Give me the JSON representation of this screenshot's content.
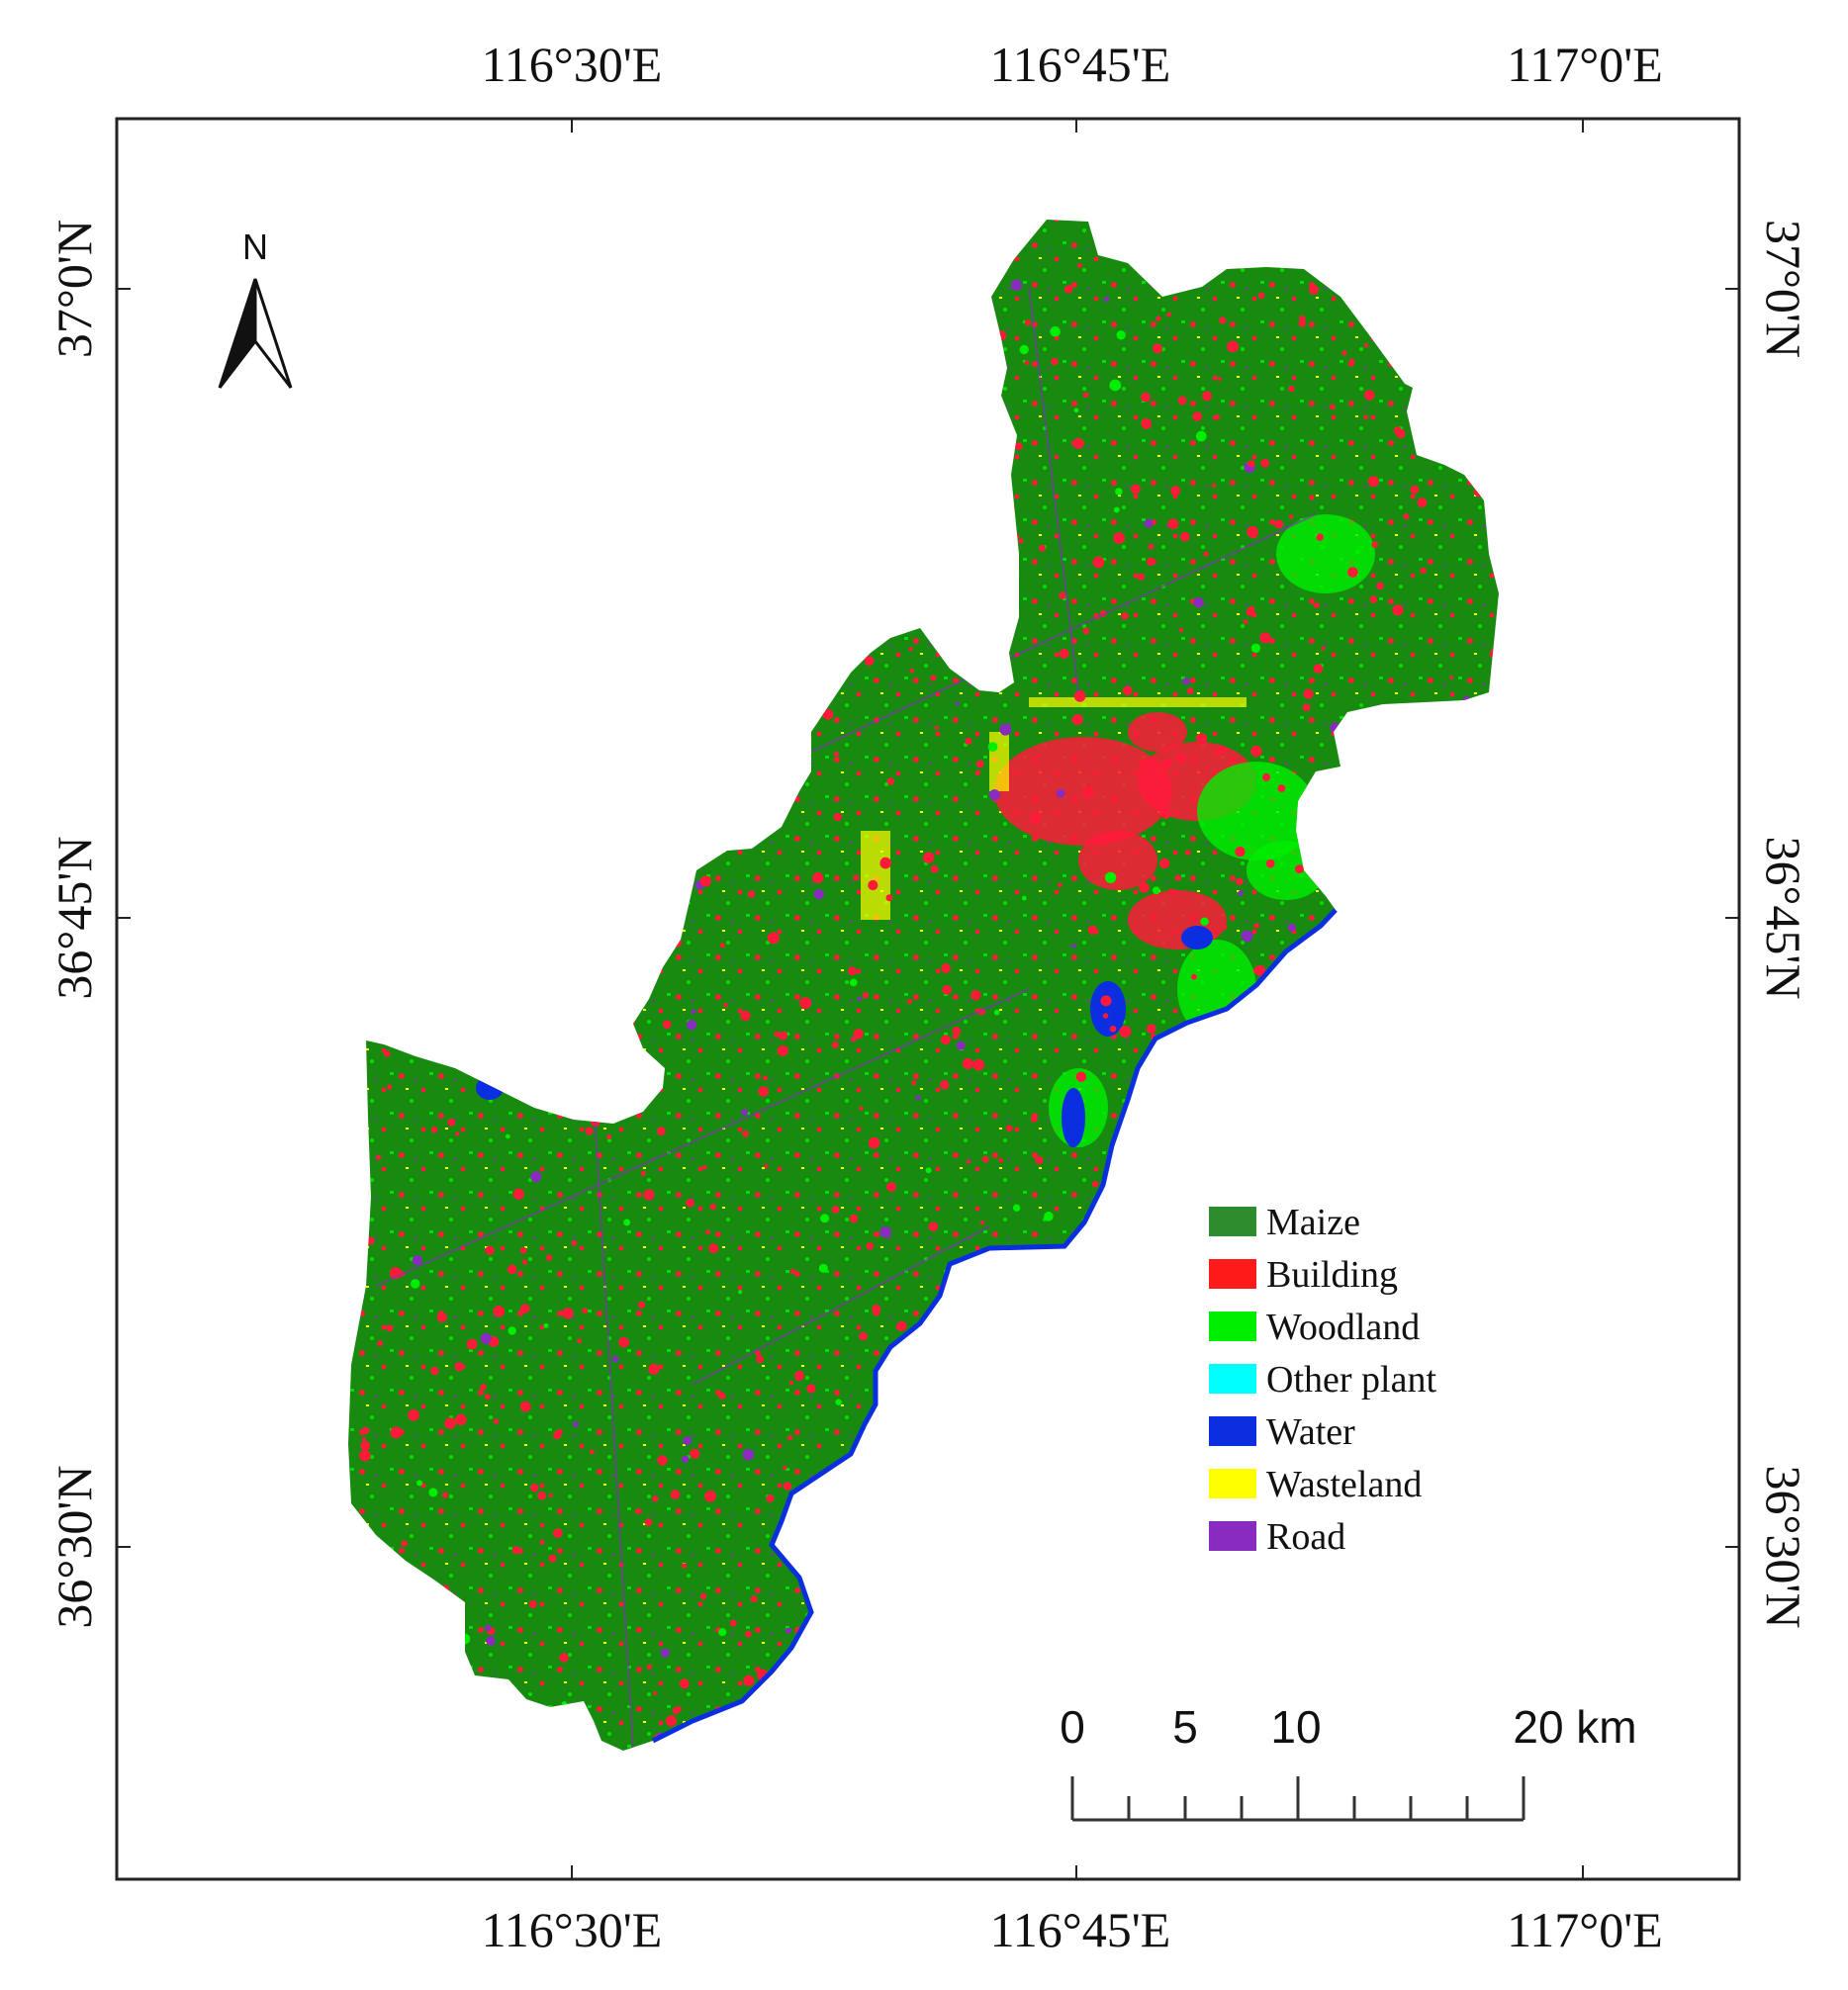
{
  "longitude_labels": [
    {
      "text": "116°30'E",
      "value": "116°30'E"
    },
    {
      "text": "116°45'E",
      "value": "116°45'E"
    },
    {
      "text": "117°0'E",
      "value": "117°0'E"
    }
  ],
  "latitude_labels": [
    {
      "text": "37°0'N"
    },
    {
      "text": "36°45'N"
    },
    {
      "text": "36°30'N"
    }
  ],
  "north_arrow": {
    "label": "N",
    "icon": "north-arrow-icon"
  },
  "legend": {
    "items": [
      {
        "label": "Maize",
        "color": "#2e8b2e"
      },
      {
        "label": "Building",
        "color": "#ff1a1a"
      },
      {
        "label": "Woodland",
        "color": "#00ee00"
      },
      {
        "label": "Other plant",
        "color": "#00ffff"
      },
      {
        "label": "Water",
        "color": "#0a2ee0"
      },
      {
        "label": "Wasteland",
        "color": "#ffff00"
      },
      {
        "label": "Road",
        "color": "#8a2bc0"
      }
    ]
  },
  "scale_bar": {
    "labels": [
      "0",
      "5",
      "10",
      "20 km"
    ]
  },
  "colors": {
    "maize": "#188a10",
    "building": "#ff1a3a",
    "woodland": "#00ee00",
    "water": "#0a2ee0",
    "wasteland": "#ffff00",
    "road": "#8a2bc0",
    "other_plant": "#00ffff"
  }
}
